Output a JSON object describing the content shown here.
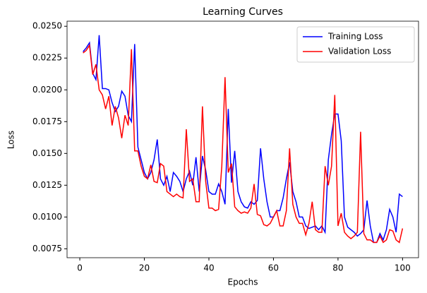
{
  "chart_data": {
    "type": "line",
    "title": "Learning Curves",
    "xlabel": "Epochs",
    "ylabel": "Loss",
    "x": [
      1,
      2,
      3,
      4,
      5,
      6,
      7,
      8,
      9,
      10,
      11,
      12,
      13,
      14,
      15,
      16,
      17,
      18,
      19,
      20,
      21,
      22,
      23,
      24,
      25,
      26,
      27,
      28,
      29,
      30,
      31,
      32,
      33,
      34,
      35,
      36,
      37,
      38,
      39,
      40,
      41,
      42,
      43,
      44,
      45,
      46,
      47,
      48,
      49,
      50,
      51,
      52,
      53,
      54,
      55,
      56,
      57,
      58,
      59,
      60,
      61,
      62,
      63,
      64,
      65,
      66,
      67,
      68,
      69,
      70,
      71,
      72,
      73,
      74,
      75,
      76,
      77,
      78,
      79,
      80,
      81,
      82,
      83,
      84,
      85,
      86,
      87,
      88,
      89,
      90,
      91,
      92,
      93,
      94,
      95,
      96,
      97,
      98,
      99,
      100
    ],
    "series": [
      {
        "name": "Training Loss",
        "color": "#0000ff",
        "values": [
          0.023,
          0.0233,
          0.0237,
          0.0213,
          0.0208,
          0.0243,
          0.0201,
          0.0201,
          0.02,
          0.019,
          0.0183,
          0.0187,
          0.0199,
          0.0195,
          0.018,
          0.0175,
          0.0236,
          0.0155,
          0.0145,
          0.0135,
          0.013,
          0.0135,
          0.0145,
          0.0161,
          0.013,
          0.0125,
          0.0132,
          0.012,
          0.0135,
          0.0132,
          0.0128,
          0.012,
          0.013,
          0.0136,
          0.0125,
          0.0147,
          0.012,
          0.0148,
          0.0137,
          0.012,
          0.0118,
          0.0118,
          0.0126,
          0.012,
          0.011,
          0.0185,
          0.0127,
          0.0152,
          0.012,
          0.0112,
          0.0108,
          0.0107,
          0.0112,
          0.011,
          0.0113,
          0.0154,
          0.013,
          0.0112,
          0.01,
          0.01,
          0.0105,
          0.0105,
          0.0115,
          0.013,
          0.0143,
          0.012,
          0.0112,
          0.01,
          0.01,
          0.0093,
          0.0091,
          0.0092,
          0.0093,
          0.009,
          0.0093,
          0.0088,
          0.0145,
          0.0165,
          0.0181,
          0.0181,
          0.016,
          0.01,
          0.0092,
          0.009,
          0.0088,
          0.0085,
          0.0087,
          0.009,
          0.0113,
          0.0093,
          0.008,
          0.008,
          0.0087,
          0.0082,
          0.009,
          0.0106,
          0.01,
          0.0088,
          0.0118,
          0.0116
        ]
      },
      {
        "name": "Validation Loss",
        "color": "#ff0000",
        "values": [
          0.0229,
          0.0231,
          0.0235,
          0.0212,
          0.022,
          0.02,
          0.0196,
          0.0185,
          0.0195,
          0.0172,
          0.0187,
          0.0178,
          0.0162,
          0.018,
          0.0172,
          0.0232,
          0.0152,
          0.0152,
          0.014,
          0.0132,
          0.013,
          0.0141,
          0.0128,
          0.0127,
          0.0142,
          0.014,
          0.012,
          0.0118,
          0.0116,
          0.0118,
          0.0116,
          0.0115,
          0.0169,
          0.0128,
          0.013,
          0.0112,
          0.0112,
          0.0187,
          0.0128,
          0.0107,
          0.0107,
          0.0105,
          0.0106,
          0.014,
          0.021,
          0.0135,
          0.0142,
          0.0108,
          0.0105,
          0.0103,
          0.0104,
          0.0103,
          0.0107,
          0.0126,
          0.0102,
          0.0101,
          0.0094,
          0.0093,
          0.0095,
          0.01,
          0.0105,
          0.0093,
          0.0093,
          0.0105,
          0.0154,
          0.011,
          0.01,
          0.0095,
          0.0095,
          0.0086,
          0.0095,
          0.0112,
          0.009,
          0.0088,
          0.0088,
          0.014,
          0.0125,
          0.014,
          0.0196,
          0.0093,
          0.0103,
          0.0088,
          0.0085,
          0.0083,
          0.0085,
          0.0088,
          0.0167,
          0.0087,
          0.0082,
          0.0082,
          0.008,
          0.008,
          0.0085,
          0.008,
          0.0082,
          0.009,
          0.0089,
          0.0082,
          0.008,
          0.0091
        ]
      }
    ],
    "xlim": [
      -3.95,
      104.95
    ],
    "ylim": [
      0.0068,
      0.0254
    ],
    "xticks": [
      0,
      20,
      40,
      60,
      80,
      100
    ],
    "yticks": [
      0.0075,
      {
        "value": 0.01,
        "label": "0.0100"
      },
      0.0125,
      {
        "value": 0.015,
        "label": "0.0150"
      },
      0.0175,
      {
        "value": 0.02,
        "label": "0.0200"
      },
      0.0225,
      {
        "value": 0.025,
        "label": "0.0250"
      }
    ],
    "legend": "upper right"
  }
}
